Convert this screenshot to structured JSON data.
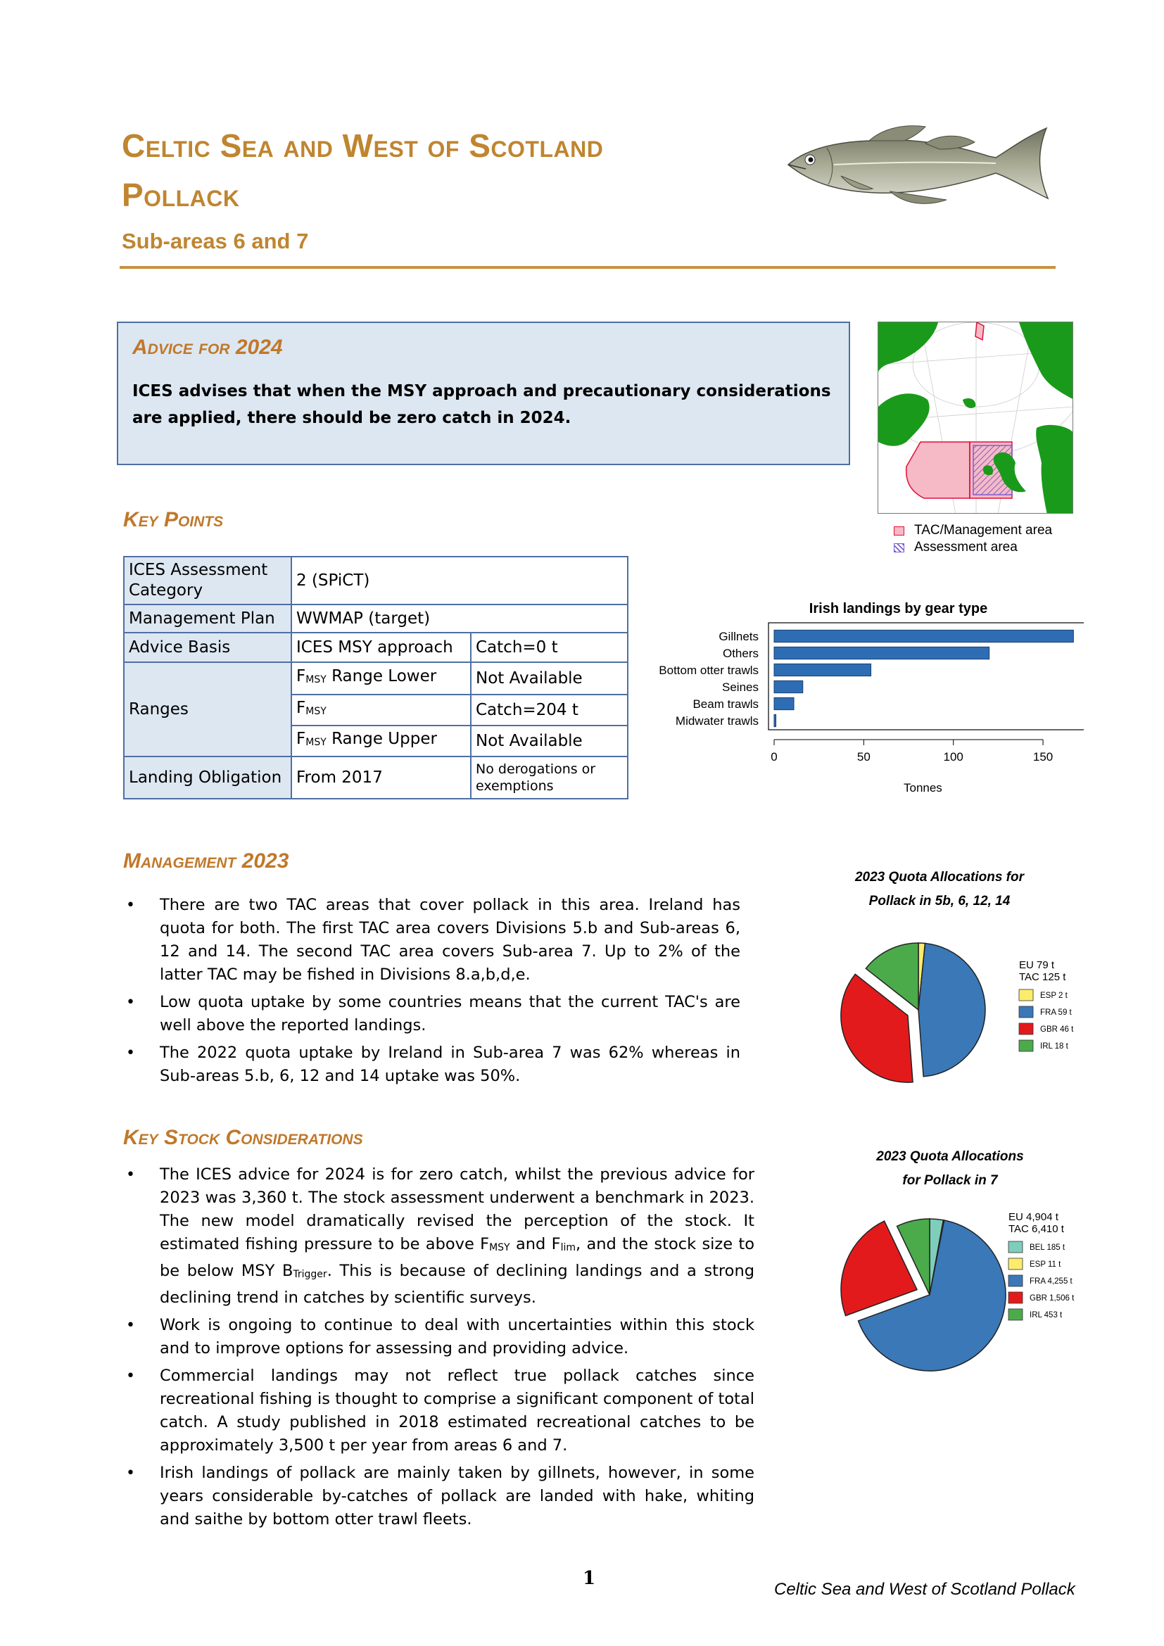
{
  "header": {
    "title_line1": "Celtic Sea and West of Scotland",
    "title_line2": "Pollack",
    "subtitle": "Sub-areas 6 and 7"
  },
  "advice": {
    "heading": "Advice for 2024",
    "text": "ICES advises that when the MSY approach and precautionary considerations are applied, there should be zero catch in 2024."
  },
  "map": {
    "legend": [
      {
        "label": "TAC/Management area",
        "color": "#f6b9c6"
      },
      {
        "label": "Assessment area",
        "color": "#7a5fd0"
      }
    ]
  },
  "key_points": {
    "heading": "Key Points",
    "rows": {
      "cat_label": "ICES Assessment Category",
      "cat_value": "2 (SPiCT)",
      "plan_label": "Management Plan",
      "plan_value": "WWMAP (target)",
      "basis_label": "Advice Basis",
      "basis_value": "ICES MSY approach",
      "basis_value2": "Catch=0 t",
      "ranges_label": "Ranges",
      "fmsy_lower_a": "F",
      "fmsy_lower_sub": "MSY",
      "fmsy_lower_b": " Range Lower",
      "fmsy_lower_value": "Not Available",
      "fmsy_a": "F",
      "fmsy_sub": "MSY",
      "fmsy_value": "Catch=204 t",
      "fmsy_upper_a": "F",
      "fmsy_upper_sub": "MSY",
      "fmsy_upper_b": " Range Upper",
      "fmsy_upper_value": "Not Available",
      "landing_label": "Landing Obligation",
      "landing_value": "From 2017",
      "landing_value2": "No derogations or exemptions"
    }
  },
  "management": {
    "heading": "Management 2023",
    "bullets": [
      "There are two TAC areas that cover pollack in this area. Ireland has quota for both.  The first TAC area covers Divisions 5.b and Sub-areas 6, 12 and 14. The second TAC area covers Sub-area 7. Up to 2% of the latter TAC may be fished in Divisions 8.a,b,d,e.",
      "Low quota uptake by some countries means that the current TAC's are well above the reported landings.",
      "The 2022 quota uptake by Ireland in Sub-area 7 was 62% whereas in Sub-areas 5.b, 6, 12 and 14 uptake was 50%."
    ]
  },
  "considerations": {
    "heading": "Key Stock Considerations",
    "b1_a": "The ICES advice for 2024 is for zero catch, whilst the previous advice for 2023 was 3,360 t. The stock assessment underwent a benchmark in 2023. The new model dramatically revised the perception of the stock. It estimated fishing pressure to be above F",
    "b1_sub1": "MSY",
    "b1_b": " and F",
    "b1_sub2": "lim",
    "b1_c": ", and the stock size to be below MSY B",
    "b1_sub3": "Trigger",
    "b1_d": ". This is because of declining landings and a strong declining trend in catches by scientific surveys.",
    "b2": "Work is ongoing to continue to deal with uncertainties within this stock and to improve options for assessing and providing advice.",
    "b3": "Commercial landings may not reflect true pollack catches since recreational fishing is thought to comprise a significant component of total catch. A study published in 2018 estimated recreational catches to be approximately 3,500 t per year from areas 6 and 7.",
    "b4": "Irish landings of pollack are mainly taken by gillnets, however, in some years considerable by-catches of pollack are landed with hake, whiting and saithe by bottom otter trawl fleets."
  },
  "chart_data": [
    {
      "type": "bar",
      "orientation": "horizontal",
      "title": "Irish landings by gear type",
      "xlabel": "Tonnes",
      "ylabel": "",
      "categories": [
        "Gillnets",
        "Others",
        "Bottom otter trawls",
        "Seines",
        "Beam trawls",
        "Midwater trawls"
      ],
      "values": [
        167,
        120,
        54,
        16,
        11,
        1
      ],
      "xlim": [
        0,
        170
      ],
      "xticks": [
        0,
        50,
        100,
        150
      ],
      "color": "#2e6db4"
    },
    {
      "type": "pie",
      "title_line1": "2023 Quota Allocations for",
      "title_line2": "Pollack in 5b, 6, 12, 14",
      "legend_header": [
        "EU 79 t",
        "TAC 125 t"
      ],
      "slices": [
        {
          "label": "ESP 2 t",
          "value": 2,
          "color": "#fbec6c",
          "exploded": false
        },
        {
          "label": "FRA 59 t",
          "value": 59,
          "color": "#3a78b8",
          "exploded": false
        },
        {
          "label": "GBR 46 t",
          "value": 46,
          "color": "#e31a1c",
          "exploded": true
        },
        {
          "label": "IRL 18 t",
          "value": 18,
          "color": "#4bab4b",
          "exploded": false
        }
      ]
    },
    {
      "type": "pie",
      "title_line1": "2023 Quota Allocations",
      "title_line2": "for Pollack in 7",
      "legend_header": [
        "EU 4,904 t",
        "TAC 6,410 t"
      ],
      "slices": [
        {
          "label": "BEL 185 t",
          "value": 185,
          "color": "#7fcdbb",
          "exploded": false
        },
        {
          "label": "ESP 11 t",
          "value": 11,
          "color": "#fbec6c",
          "exploded": false
        },
        {
          "label": "FRA 4,255 t",
          "value": 4255,
          "color": "#3a78b8",
          "exploded": false
        },
        {
          "label": "GBR 1,506 t",
          "value": 1506,
          "color": "#e31a1c",
          "exploded": true
        },
        {
          "label": "IRL 453 t",
          "value": 453,
          "color": "#4bab4b",
          "exploded": false
        }
      ]
    }
  ],
  "footer": {
    "page": "1",
    "text": "Celtic Sea and West of Scotland Pollack"
  }
}
